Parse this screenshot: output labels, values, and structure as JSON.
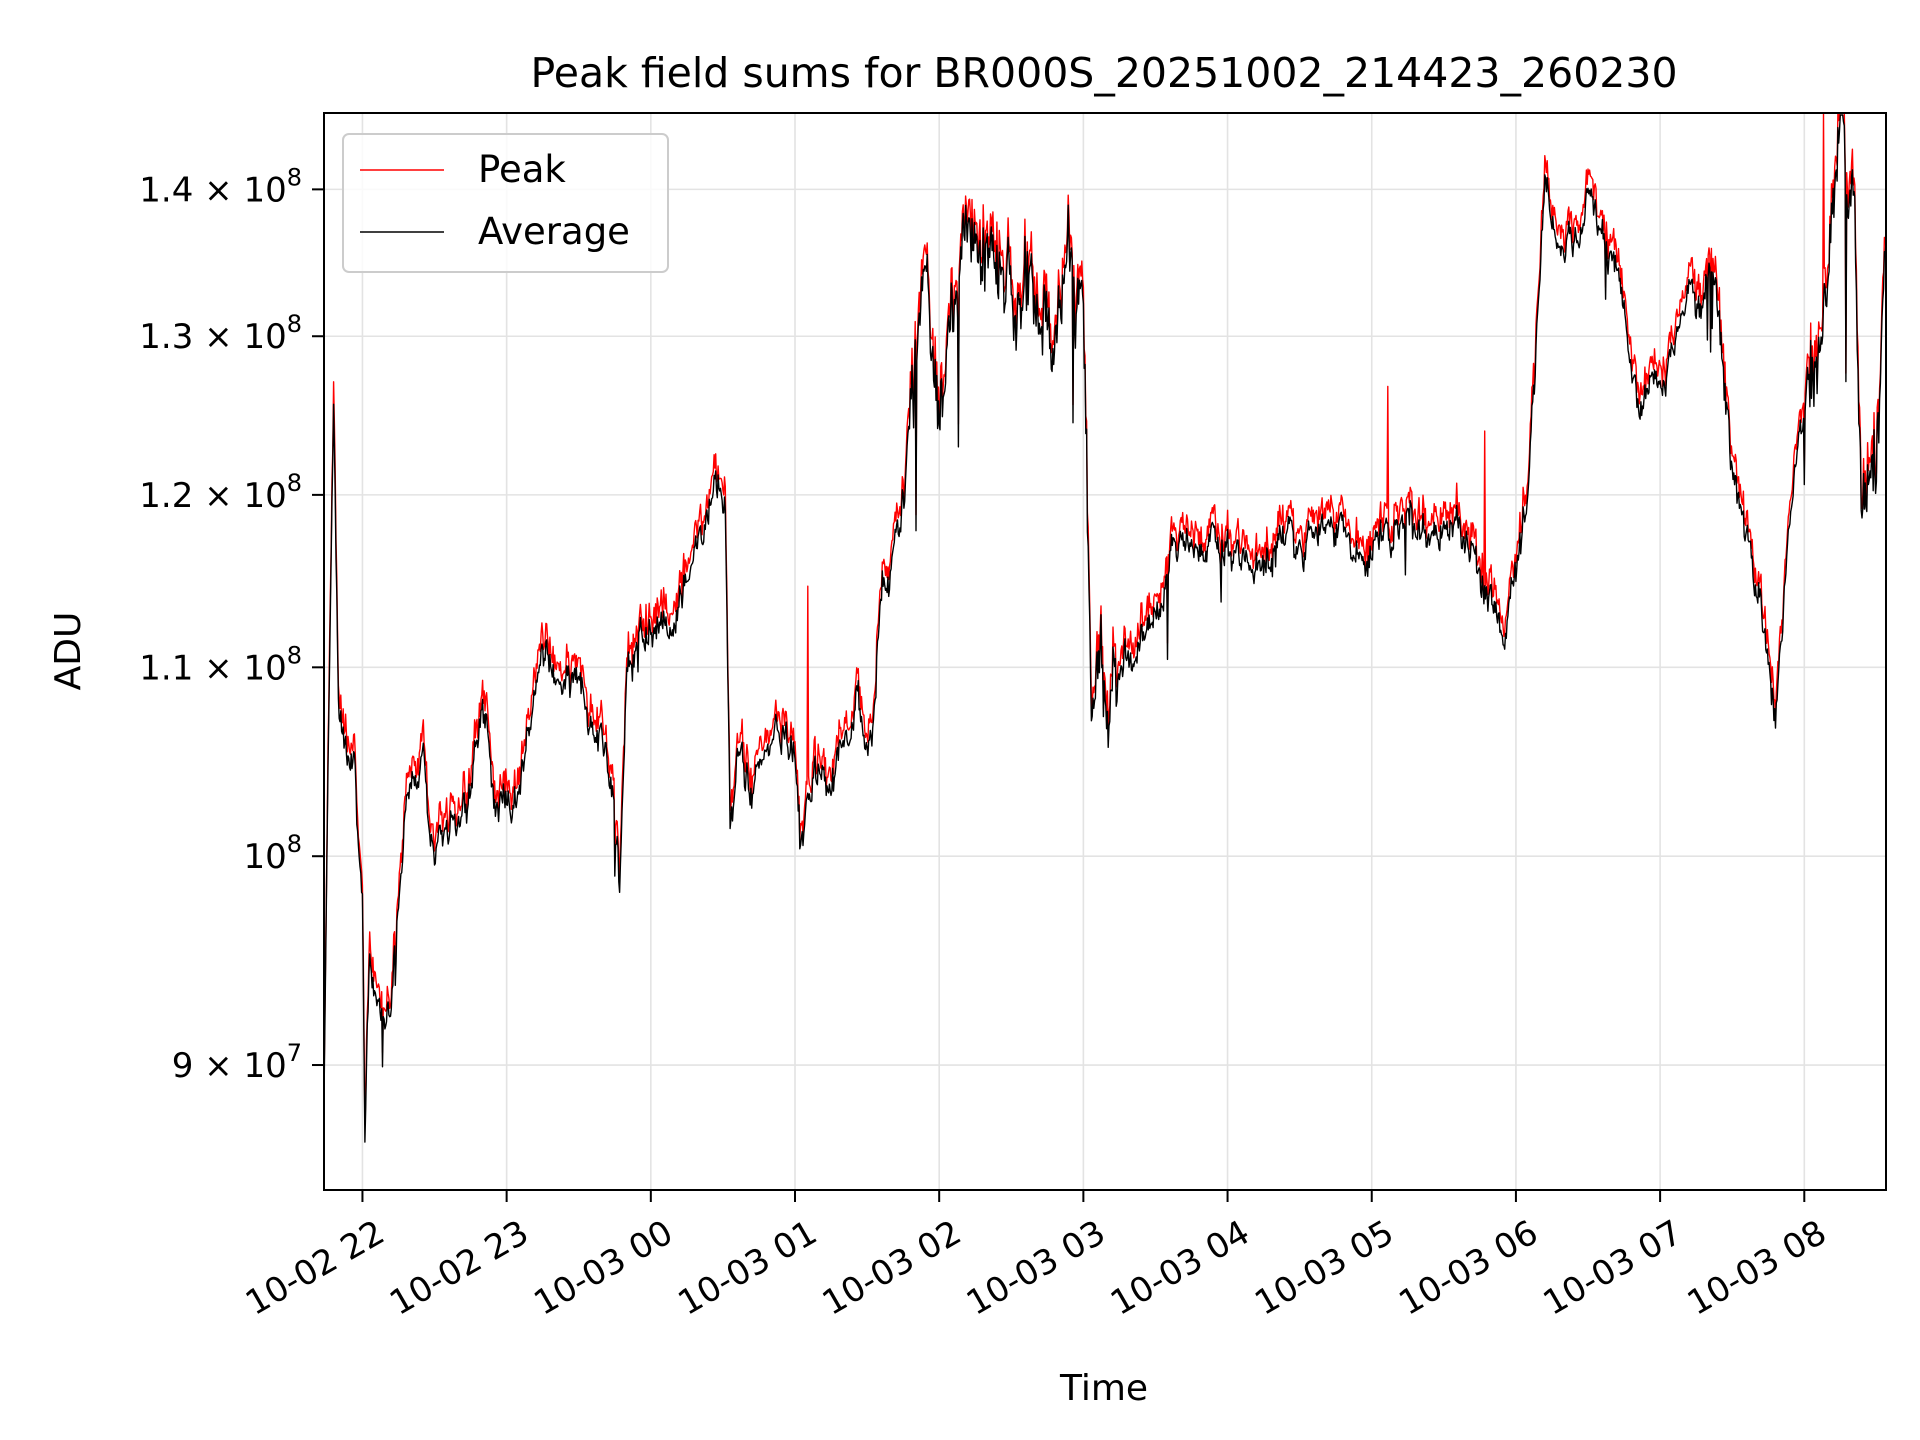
{
  "chart_data": {
    "type": "line",
    "title": "Peak field sums for BR000S_20251002_214423_260230",
    "xlabel": "Time",
    "ylabel": "ADU",
    "yscale": "log",
    "ylim": [
      84500000,
      145500000
    ],
    "xlim": [
      "2025-10-02 21:44",
      "2025-10-03 08:34"
    ],
    "grid": true,
    "legend_position": "upper-left",
    "x_ticks": [
      "10-02 22",
      "10-02 23",
      "10-03 00",
      "10-03 01",
      "10-03 02",
      "10-03 03",
      "10-03 04",
      "10-03 05",
      "10-03 06",
      "10-03 07",
      "10-03 08"
    ],
    "y_ticks": [
      {
        "value": 90000000,
        "mantissa": "9",
        "exp": "7"
      },
      {
        "value": 100000000,
        "mantissa": "",
        "exp": "8"
      },
      {
        "value": 110000000,
        "mantissa": "1.1",
        "exp": "8"
      },
      {
        "value": 120000000,
        "mantissa": "1.2",
        "exp": "8"
      },
      {
        "value": 130000000,
        "mantissa": "1.3",
        "exp": "8"
      },
      {
        "value": 140000000,
        "mantissa": "1.4",
        "exp": "8"
      }
    ],
    "series": [
      {
        "name": "Peak",
        "color": "#ff0000"
      },
      {
        "name": "Average",
        "color": "#000000"
      }
    ],
    "keypoints": [
      [
        "2025-10-02 21:44",
        88000000
      ],
      [
        "2025-10-02 21:46",
        107000000
      ],
      [
        "2025-10-02 21:48",
        124500000
      ],
      [
        "2025-10-02 21:50",
        107000000
      ],
      [
        "2025-10-02 21:54",
        105000000
      ],
      [
        "2025-10-02 21:57",
        103000000
      ],
      [
        "2025-10-02 22:00",
        97000000
      ],
      [
        "2025-10-02 22:01",
        86000000
      ],
      [
        "2025-10-02 22:03",
        95000000
      ],
      [
        "2025-10-02 22:06",
        92000000
      ],
      [
        "2025-10-02 22:12",
        93500000
      ],
      [
        "2025-10-02 22:18",
        102000000
      ],
      [
        "2025-10-02 22:25",
        104000000
      ],
      [
        "2025-10-02 22:30",
        99000000
      ],
      [
        "2025-10-02 22:36",
        101000000
      ],
      [
        "2025-10-02 22:45",
        104000000
      ],
      [
        "2025-10-02 22:50",
        108500000
      ],
      [
        "2025-10-02 22:55",
        103500000
      ],
      [
        "2025-10-02 23:05",
        103000000
      ],
      [
        "2025-10-02 23:12",
        109500000
      ],
      [
        "2025-10-02 23:20",
        110000000
      ],
      [
        "2025-10-02 23:32",
        109000000
      ],
      [
        "2025-10-02 23:40",
        106000000
      ],
      [
        "2025-10-02 23:44",
        104000000
      ],
      [
        "2025-10-02 23:47",
        98500000
      ],
      [
        "2025-10-02 23:50",
        110500000
      ],
      [
        "2025-10-03 00:00",
        112500000
      ],
      [
        "2025-10-03 00:10",
        114500000
      ],
      [
        "2025-10-03 00:18",
        115500000
      ],
      [
        "2025-10-03 00:23",
        118500000
      ],
      [
        "2025-10-03 00:28",
        120500000
      ],
      [
        "2025-10-03 00:31",
        119000000
      ],
      [
        "2025-10-03 00:33",
        101500000
      ],
      [
        "2025-10-03 00:36",
        106000000
      ],
      [
        "2025-10-03 00:42",
        103500000
      ],
      [
        "2025-10-03 00:48",
        106500000
      ],
      [
        "2025-10-03 00:55",
        107500000
      ],
      [
        "2025-10-03 01:00",
        105000000
      ],
      [
        "2025-10-03 01:02",
        100000000
      ],
      [
        "2025-10-03 01:08",
        105500000
      ],
      [
        "2025-10-03 01:15",
        103000000
      ],
      [
        "2025-10-03 01:25",
        109500000
      ],
      [
        "2025-10-03 01:32",
        106000000
      ],
      [
        "2025-10-03 01:36",
        115000000
      ],
      [
        "2025-10-03 01:44",
        118000000
      ],
      [
        "2025-10-03 01:48",
        125000000
      ],
      [
        "2025-10-03 01:54",
        133500000
      ],
      [
        "2025-10-03 02:00",
        126000000
      ],
      [
        "2025-10-03 02:08",
        130000000
      ],
      [
        "2025-10-03 02:16",
        134000000
      ],
      [
        "2025-10-03 02:24",
        132000000
      ],
      [
        "2025-10-03 02:32",
        136500000
      ],
      [
        "2025-10-03 02:40",
        134000000
      ],
      [
        "2025-10-03 02:48",
        129500000
      ],
      [
        "2025-10-03 02:54",
        136000000
      ],
      [
        "2025-10-03 03:00",
        133000000
      ],
      [
        "2025-10-03 03:03",
        112500000
      ],
      [
        "2025-10-03 03:10",
        109500000
      ],
      [
        "2025-10-03 03:20",
        110500000
      ],
      [
        "2025-10-03 03:30",
        114000000
      ],
      [
        "2025-10-03 03:40",
        117000000
      ],
      [
        "2025-10-03 04:00",
        116000000
      ],
      [
        "2025-10-03 04:20",
        116500000
      ],
      [
        "2025-10-03 04:40",
        117500000
      ],
      [
        "2025-10-03 05:00",
        117500000
      ],
      [
        "2025-10-03 05:20",
        118500000
      ],
      [
        "2025-10-03 05:40",
        117500000
      ],
      [
        "2025-10-03 05:55",
        112000000
      ],
      [
        "2025-10-03 06:05",
        120000000
      ],
      [
        "2025-10-03 06:12",
        139500000
      ],
      [
        "2025-10-03 06:20",
        135000000
      ],
      [
        "2025-10-03 06:30",
        139000000
      ],
      [
        "2025-10-03 06:42",
        133500000
      ],
      [
        "2025-10-03 06:52",
        126000000
      ],
      [
        "2025-10-03 07:02",
        128500000
      ],
      [
        "2025-10-03 07:12",
        133000000
      ],
      [
        "2025-10-03 07:22",
        135500000
      ],
      [
        "2025-10-03 07:30",
        121000000
      ],
      [
        "2025-10-03 07:40",
        115000000
      ],
      [
        "2025-10-03 07:48",
        108000000
      ],
      [
        "2025-10-03 07:56",
        120500000
      ],
      [
        "2025-10-03 08:04",
        129000000
      ],
      [
        "2025-10-03 08:12",
        134500000
      ],
      [
        "2025-10-03 08:16",
        140500000
      ],
      [
        "2025-10-03 08:20",
        138500000
      ],
      [
        "2025-10-03 08:24",
        116500000
      ],
      [
        "2025-10-03 08:30",
        121000000
      ],
      [
        "2025-10-03 08:34",
        138000000
      ]
    ]
  }
}
